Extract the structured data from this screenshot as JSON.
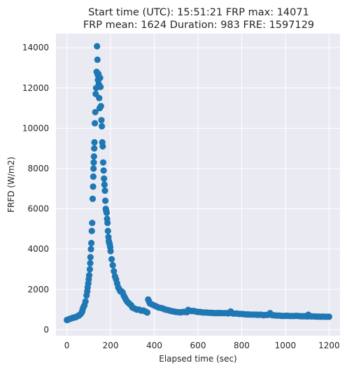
{
  "chart_data": {
    "type": "scatter",
    "title_lines": [
      "Start time (UTC): 15:51:21 FRP max: 14071",
      "FRP mean: 1624 Duration: 983 FRE: 1597129"
    ],
    "xlabel": "Elapsed time (sec)",
    "ylabel": "FRFD (W/m2)",
    "xlim": [
      -50,
      1250
    ],
    "ylim": [
      -300,
      14700
    ],
    "xticks": [
      0,
      200,
      400,
      600,
      800,
      1000,
      1200
    ],
    "yticks": [
      0,
      2000,
      4000,
      6000,
      8000,
      10000,
      12000,
      14000
    ],
    "grid": true,
    "colors": {
      "marker": "#1f77b4",
      "plot_bg": "#eaeaf2",
      "grid": "#ffffff",
      "text": "#262626"
    },
    "points": [
      [
        0,
        480
      ],
      [
        5,
        500
      ],
      [
        10,
        520
      ],
      [
        15,
        540
      ],
      [
        20,
        560
      ],
      [
        25,
        580
      ],
      [
        30,
        600
      ],
      [
        35,
        610
      ],
      [
        40,
        620
      ],
      [
        45,
        650
      ],
      [
        50,
        680
      ],
      [
        55,
        700
      ],
      [
        60,
        750
      ],
      [
        65,
        800
      ],
      [
        70,
        900
      ],
      [
        72,
        1000
      ],
      [
        75,
        1100
      ],
      [
        80,
        1200
      ],
      [
        85,
        1400
      ],
      [
        90,
        1700
      ],
      [
        93,
        1900
      ],
      [
        95,
        2100
      ],
      [
        98,
        2300
      ],
      [
        100,
        2500
      ],
      [
        102,
        2700
      ],
      [
        105,
        3000
      ],
      [
        107,
        3300
      ],
      [
        108,
        3600
      ],
      [
        110,
        4000
      ],
      [
        112,
        4300
      ],
      [
        114,
        4900
      ],
      [
        116,
        5300
      ],
      [
        118,
        6500
      ],
      [
        120,
        7100
      ],
      [
        121,
        7600
      ],
      [
        122,
        8000
      ],
      [
        123,
        8300
      ],
      [
        124,
        8600
      ],
      [
        125,
        9000
      ],
      [
        126,
        9300
      ],
      [
        128,
        10250
      ],
      [
        130,
        10800
      ],
      [
        132,
        11700
      ],
      [
        134,
        12000
      ],
      [
        136,
        12800
      ],
      [
        138,
        14071
      ],
      [
        140,
        13400
      ],
      [
        141,
        12650
      ],
      [
        142,
        12400
      ],
      [
        144,
        12700
      ],
      [
        146,
        12200
      ],
      [
        148,
        11500
      ],
      [
        150,
        11000
      ],
      [
        152,
        12500
      ],
      [
        154,
        12050
      ],
      [
        156,
        11100
      ],
      [
        158,
        10400
      ],
      [
        160,
        10100
      ],
      [
        162,
        9300
      ],
      [
        164,
        9100
      ],
      [
        166,
        8300
      ],
      [
        168,
        7900
      ],
      [
        170,
        7500
      ],
      [
        172,
        7200
      ],
      [
        174,
        6900
      ],
      [
        176,
        6400
      ],
      [
        178,
        6000
      ],
      [
        180,
        5900
      ],
      [
        182,
        5800
      ],
      [
        184,
        5500
      ],
      [
        186,
        5300
      ],
      [
        188,
        4900
      ],
      [
        190,
        4600
      ],
      [
        192,
        4400
      ],
      [
        194,
        4300
      ],
      [
        196,
        4250
      ],
      [
        198,
        4100
      ],
      [
        200,
        3900
      ],
      [
        205,
        3500
      ],
      [
        210,
        3200
      ],
      [
        215,
        2900
      ],
      [
        220,
        2650
      ],
      [
        225,
        2500
      ],
      [
        230,
        2300
      ],
      [
        235,
        2100
      ],
      [
        240,
        2000
      ],
      [
        245,
        1900
      ],
      [
        250,
        1900
      ],
      [
        255,
        1850
      ],
      [
        260,
        1700
      ],
      [
        265,
        1600
      ],
      [
        270,
        1500
      ],
      [
        275,
        1400
      ],
      [
        280,
        1350
      ],
      [
        285,
        1300
      ],
      [
        290,
        1250
      ],
      [
        295,
        1200
      ],
      [
        300,
        1100
      ],
      [
        310,
        1050
      ],
      [
        320,
        1000
      ],
      [
        330,
        1000
      ],
      [
        340,
        950
      ],
      [
        350,
        950
      ],
      [
        360,
        900
      ],
      [
        368,
        850
      ],
      [
        372,
        1500
      ],
      [
        376,
        1400
      ],
      [
        380,
        1300
      ],
      [
        390,
        1250
      ],
      [
        400,
        1200
      ],
      [
        410,
        1150
      ],
      [
        420,
        1100
      ],
      [
        430,
        1080
      ],
      [
        440,
        1050
      ],
      [
        450,
        1000
      ],
      [
        460,
        980
      ],
      [
        470,
        950
      ],
      [
        480,
        920
      ],
      [
        490,
        900
      ],
      [
        500,
        880
      ],
      [
        510,
        870
      ],
      [
        520,
        860
      ],
      [
        530,
        880
      ],
      [
        540,
        880
      ],
      [
        550,
        870
      ],
      [
        555,
        980
      ],
      [
        560,
        950
      ],
      [
        570,
        930
      ],
      [
        580,
        930
      ],
      [
        590,
        900
      ],
      [
        600,
        880
      ],
      [
        610,
        880
      ],
      [
        620,
        860
      ],
      [
        630,
        850
      ],
      [
        640,
        850
      ],
      [
        650,
        840
      ],
      [
        660,
        840
      ],
      [
        670,
        830
      ],
      [
        680,
        820
      ],
      [
        690,
        830
      ],
      [
        700,
        830
      ],
      [
        710,
        820
      ],
      [
        720,
        820
      ],
      [
        730,
        820
      ],
      [
        740,
        810
      ],
      [
        750,
        900
      ],
      [
        760,
        800
      ],
      [
        770,
        800
      ],
      [
        780,
        800
      ],
      [
        790,
        780
      ],
      [
        800,
        780
      ],
      [
        810,
        770
      ],
      [
        820,
        760
      ],
      [
        830,
        760
      ],
      [
        840,
        750
      ],
      [
        850,
        750
      ],
      [
        860,
        750
      ],
      [
        870,
        740
      ],
      [
        880,
        740
      ],
      [
        890,
        740
      ],
      [
        900,
        720
      ],
      [
        910,
        730
      ],
      [
        920,
        730
      ],
      [
        930,
        820
      ],
      [
        940,
        720
      ],
      [
        950,
        710
      ],
      [
        960,
        700
      ],
      [
        970,
        700
      ],
      [
        980,
        690
      ],
      [
        990,
        680
      ],
      [
        1000,
        690
      ],
      [
        1010,
        690
      ],
      [
        1020,
        680
      ],
      [
        1030,
        680
      ],
      [
        1040,
        680
      ],
      [
        1050,
        690
      ],
      [
        1060,
        680
      ],
      [
        1070,
        670
      ],
      [
        1080,
        670
      ],
      [
        1090,
        670
      ],
      [
        1100,
        660
      ],
      [
        1105,
        740
      ],
      [
        1110,
        670
      ],
      [
        1120,
        660
      ],
      [
        1130,
        660
      ],
      [
        1140,
        650
      ],
      [
        1150,
        650
      ],
      [
        1160,
        640
      ],
      [
        1170,
        650
      ],
      [
        1180,
        640
      ],
      [
        1190,
        640
      ],
      [
        1200,
        640
      ]
    ]
  }
}
